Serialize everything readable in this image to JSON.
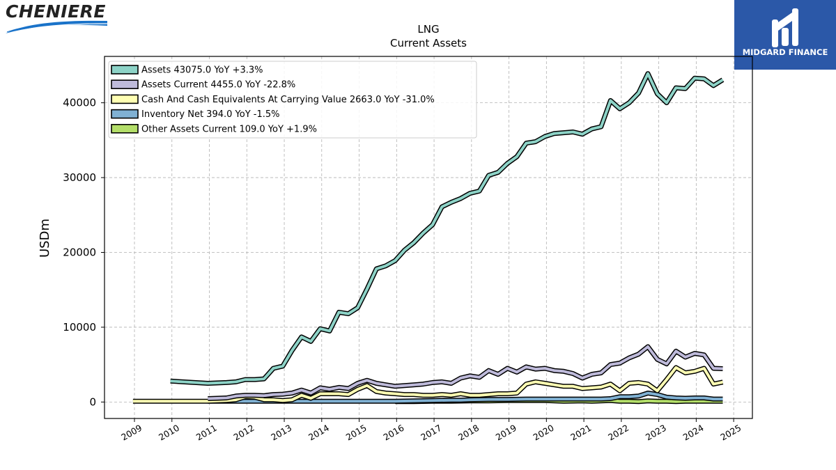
{
  "branding": {
    "left_logo_text": "CHENIERE",
    "right_logo_text": "MIDGARD FINANCE"
  },
  "chart_data": {
    "type": "line",
    "title": "LNG",
    "subtitle": "Current  Assets",
    "ylabel": "USDm",
    "xlabel": "",
    "xlim": [
      2008.2,
      2025.5
    ],
    "ylim": [
      -2200,
      46200
    ],
    "x_ticks": [
      "2009",
      "2010",
      "2011",
      "2012",
      "2013",
      "2014",
      "2015",
      "2016",
      "2017",
      "2018",
      "2019",
      "2020",
      "2021",
      "2022",
      "2023",
      "2024",
      "2025"
    ],
    "y_ticks": [
      0,
      10000,
      20000,
      30000,
      40000
    ],
    "grid": true,
    "legend_position": "top-left",
    "series": [
      {
        "name": "Assets",
        "legend_label": "Assets  43075.0 YoY +3.3%",
        "color": "#8dd3c7",
        "points": [
          [
            2009.96,
            2800
          ],
          [
            2010.96,
            2500
          ],
          [
            2011.46,
            2600
          ],
          [
            2011.71,
            2700
          ],
          [
            2011.96,
            3000
          ],
          [
            2012.21,
            3000
          ],
          [
            2012.46,
            3100
          ],
          [
            2012.71,
            4500
          ],
          [
            2012.96,
            4800
          ],
          [
            2013.21,
            6900
          ],
          [
            2013.46,
            8700
          ],
          [
            2013.71,
            8100
          ],
          [
            2013.96,
            9800
          ],
          [
            2014.21,
            9500
          ],
          [
            2014.46,
            12000
          ],
          [
            2014.71,
            11800
          ],
          [
            2014.96,
            12600
          ],
          [
            2015.21,
            15100
          ],
          [
            2015.46,
            17800
          ],
          [
            2015.71,
            18200
          ],
          [
            2015.96,
            18900
          ],
          [
            2016.21,
            20300
          ],
          [
            2016.46,
            21300
          ],
          [
            2016.71,
            22600
          ],
          [
            2016.96,
            23700
          ],
          [
            2017.21,
            26100
          ],
          [
            2017.46,
            26700
          ],
          [
            2017.71,
            27200
          ],
          [
            2017.96,
            27900
          ],
          [
            2018.21,
            28200
          ],
          [
            2018.46,
            30300
          ],
          [
            2018.71,
            30700
          ],
          [
            2018.96,
            31900
          ],
          [
            2019.21,
            32800
          ],
          [
            2019.46,
            34600
          ],
          [
            2019.71,
            34800
          ],
          [
            2019.96,
            35500
          ],
          [
            2020.21,
            35900
          ],
          [
            2020.46,
            36000
          ],
          [
            2020.71,
            36100
          ],
          [
            2020.96,
            35800
          ],
          [
            2021.21,
            36500
          ],
          [
            2021.46,
            36800
          ],
          [
            2021.71,
            40300
          ],
          [
            2021.96,
            39200
          ],
          [
            2022.21,
            40000
          ],
          [
            2022.46,
            41300
          ],
          [
            2022.71,
            43900
          ],
          [
            2022.96,
            41200
          ],
          [
            2023.21,
            40000
          ],
          [
            2023.46,
            42000
          ],
          [
            2023.71,
            41900
          ],
          [
            2023.96,
            43300
          ],
          [
            2024.21,
            43200
          ],
          [
            2024.46,
            42300
          ],
          [
            2024.71,
            43075
          ]
        ]
      },
      {
        "name": "Assets Current",
        "legend_label": "Assets Current  4455.0 YoY -22.8%",
        "color": "#bebada",
        "points": [
          [
            2010.96,
            450
          ],
          [
            2011.46,
            550
          ],
          [
            2011.71,
            800
          ],
          [
            2011.96,
            900
          ],
          [
            2012.21,
            900
          ],
          [
            2012.46,
            850
          ],
          [
            2012.71,
            1000
          ],
          [
            2012.96,
            1050
          ],
          [
            2013.21,
            1200
          ],
          [
            2013.46,
            1600
          ],
          [
            2013.71,
            1200
          ],
          [
            2013.96,
            1900
          ],
          [
            2014.21,
            1700
          ],
          [
            2014.46,
            1950
          ],
          [
            2014.71,
            1800
          ],
          [
            2014.96,
            2500
          ],
          [
            2015.21,
            2900
          ],
          [
            2015.46,
            2500
          ],
          [
            2015.71,
            2300
          ],
          [
            2015.96,
            2100
          ],
          [
            2016.21,
            2200
          ],
          [
            2016.46,
            2300
          ],
          [
            2016.71,
            2400
          ],
          [
            2016.96,
            2600
          ],
          [
            2017.21,
            2700
          ],
          [
            2017.46,
            2500
          ],
          [
            2017.71,
            3200
          ],
          [
            2017.96,
            3500
          ],
          [
            2018.21,
            3300
          ],
          [
            2018.46,
            4200
          ],
          [
            2018.71,
            3700
          ],
          [
            2018.96,
            4500
          ],
          [
            2019.21,
            4000
          ],
          [
            2019.46,
            4700
          ],
          [
            2019.71,
            4400
          ],
          [
            2019.96,
            4500
          ],
          [
            2020.21,
            4200
          ],
          [
            2020.46,
            4100
          ],
          [
            2020.71,
            3800
          ],
          [
            2020.96,
            3200
          ],
          [
            2021.21,
            3700
          ],
          [
            2021.46,
            3900
          ],
          [
            2021.71,
            5000
          ],
          [
            2021.96,
            5200
          ],
          [
            2022.21,
            5900
          ],
          [
            2022.46,
            6400
          ],
          [
            2022.71,
            7400
          ],
          [
            2022.96,
            5700
          ],
          [
            2023.21,
            5100
          ],
          [
            2023.46,
            6800
          ],
          [
            2023.71,
            6000
          ],
          [
            2023.96,
            6500
          ],
          [
            2024.21,
            6300
          ],
          [
            2024.46,
            4500
          ],
          [
            2024.71,
            4455
          ]
        ]
      },
      {
        "name": "Cash And Cash Equivalents At Carrying Value",
        "legend_label": "Cash And Cash Equivalents At Carrying Value  2663.0 YoY -31.0%",
        "color": "#ffffb3",
        "points": [
          [
            2008.96,
            100
          ],
          [
            2010.96,
            100
          ],
          [
            2011.46,
            200
          ],
          [
            2011.71,
            300
          ],
          [
            2011.96,
            700
          ],
          [
            2012.21,
            650
          ],
          [
            2012.46,
            300
          ],
          [
            2012.71,
            300
          ],
          [
            2012.96,
            200
          ],
          [
            2013.21,
            300
          ],
          [
            2013.46,
            900
          ],
          [
            2013.71,
            500
          ],
          [
            2013.96,
            1100
          ],
          [
            2014.21,
            1100
          ],
          [
            2014.46,
            1100
          ],
          [
            2014.71,
            1000
          ],
          [
            2014.96,
            1700
          ],
          [
            2015.21,
            2200
          ],
          [
            2015.46,
            1400
          ],
          [
            2015.71,
            1200
          ],
          [
            2015.96,
            1100
          ],
          [
            2016.21,
            1000
          ],
          [
            2016.46,
            1000
          ],
          [
            2016.71,
            900
          ],
          [
            2016.96,
            900
          ],
          [
            2017.21,
            1000
          ],
          [
            2017.46,
            900
          ],
          [
            2017.71,
            1100
          ],
          [
            2017.96,
            900
          ],
          [
            2018.21,
            900
          ],
          [
            2018.46,
            1000
          ],
          [
            2018.71,
            1100
          ],
          [
            2018.96,
            1100
          ],
          [
            2019.21,
            1200
          ],
          [
            2019.46,
            2400
          ],
          [
            2019.71,
            2700
          ],
          [
            2019.96,
            2500
          ],
          [
            2020.21,
            2300
          ],
          [
            2020.46,
            2100
          ],
          [
            2020.71,
            2100
          ],
          [
            2020.96,
            1800
          ],
          [
            2021.21,
            1900
          ],
          [
            2021.46,
            2000
          ],
          [
            2021.71,
            2400
          ],
          [
            2021.96,
            1500
          ],
          [
            2022.21,
            2500
          ],
          [
            2022.46,
            2600
          ],
          [
            2022.71,
            2400
          ],
          [
            2022.96,
            1500
          ],
          [
            2023.21,
            3000
          ],
          [
            2023.46,
            4600
          ],
          [
            2023.71,
            3900
          ],
          [
            2023.96,
            4100
          ],
          [
            2024.21,
            4500
          ],
          [
            2024.46,
            2400
          ],
          [
            2024.71,
            2663
          ]
        ]
      },
      {
        "name": "Inventory Net",
        "legend_label": "Inventory Net  394.0 YoY -1.5%",
        "color": "#80b1d3",
        "points": [
          [
            2010.96,
            100
          ],
          [
            2015.96,
            100
          ],
          [
            2016.46,
            150
          ],
          [
            2016.96,
            200
          ],
          [
            2017.46,
            250
          ],
          [
            2017.71,
            250
          ],
          [
            2017.96,
            300
          ],
          [
            2018.46,
            350
          ],
          [
            2018.96,
            350
          ],
          [
            2019.46,
            400
          ],
          [
            2019.96,
            400
          ],
          [
            2020.46,
            400
          ],
          [
            2020.96,
            400
          ],
          [
            2021.46,
            400
          ],
          [
            2021.71,
            450
          ],
          [
            2021.96,
            700
          ],
          [
            2022.21,
            700
          ],
          [
            2022.46,
            800
          ],
          [
            2022.71,
            1200
          ],
          [
            2022.96,
            1000
          ],
          [
            2023.21,
            650
          ],
          [
            2023.46,
            550
          ],
          [
            2023.71,
            500
          ],
          [
            2023.96,
            550
          ],
          [
            2024.21,
            550
          ],
          [
            2024.46,
            400
          ],
          [
            2024.71,
            394
          ]
        ]
      },
      {
        "name": "Other Assets Current",
        "legend_label": "Other Assets Current  109.0 YoY +1.9%",
        "color": "#b3de69",
        "points": [
          [
            2015.96,
            50
          ],
          [
            2016.46,
            50
          ],
          [
            2016.96,
            100
          ],
          [
            2017.46,
            100
          ],
          [
            2017.96,
            150
          ],
          [
            2018.46,
            150
          ],
          [
            2018.96,
            200
          ],
          [
            2019.46,
            200
          ],
          [
            2019.96,
            200
          ],
          [
            2020.21,
            150
          ],
          [
            2020.46,
            100
          ],
          [
            2020.96,
            150
          ],
          [
            2021.21,
            100
          ],
          [
            2021.46,
            150
          ],
          [
            2021.71,
            200
          ],
          [
            2021.96,
            100
          ],
          [
            2022.21,
            100
          ],
          [
            2022.46,
            50
          ],
          [
            2022.71,
            150
          ],
          [
            2022.96,
            100
          ],
          [
            2023.21,
            100
          ],
          [
            2023.46,
            50
          ],
          [
            2023.71,
            100
          ],
          [
            2023.96,
            100
          ],
          [
            2024.21,
            100
          ],
          [
            2024.46,
            100
          ],
          [
            2024.71,
            109
          ]
        ]
      }
    ]
  }
}
